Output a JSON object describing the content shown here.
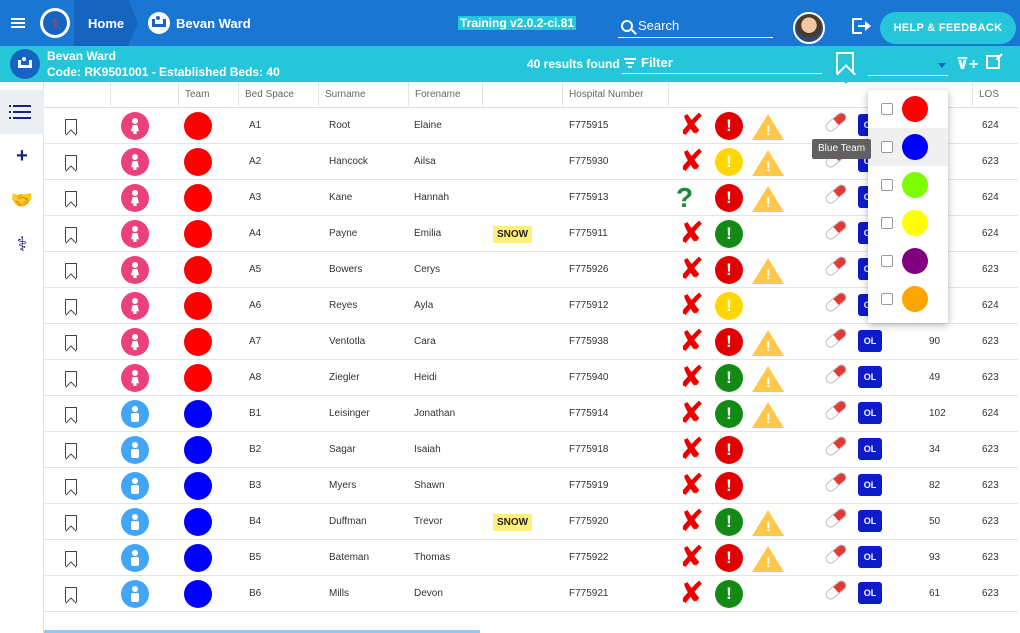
{
  "topbar": {
    "home_label": "Home",
    "ward_label": "Bevan Ward",
    "version": "Training v2.0.2-ci.81",
    "search_placeholder": "Search",
    "help_label": "HELP & FEEDBACK",
    "colors": {
      "primary": "#1976d2",
      "accent": "#26c6da"
    }
  },
  "subbar": {
    "ward_name": "Bevan Ward",
    "ward_code": "Code: RK9501001 - Established Beds: 40",
    "results": "40 results found",
    "filter_label": "Filter"
  },
  "sidebar": {
    "items": [
      {
        "name": "list-icon"
      },
      {
        "name": "plus-icon",
        "glyph": "+"
      },
      {
        "name": "handshake-icon",
        "glyph": "🤝"
      },
      {
        "name": "stethoscope-icon",
        "glyph": "⚕"
      }
    ]
  },
  "table": {
    "headers": {
      "team": "Team",
      "bed_space": "Bed Space",
      "surname": "Surname",
      "forename": "Forename",
      "hospital_number": "Hospital Number",
      "los": "LOS"
    },
    "rows": [
      {
        "gender": "f",
        "team_color": "#ff0000",
        "bed": "A1",
        "surname": "Root",
        "forename": "Elaine",
        "tag": "",
        "hosp": "F775915",
        "mark": "x",
        "alert": "red",
        "warn": true,
        "ol": true,
        "los_a": "",
        "los": "624"
      },
      {
        "gender": "f",
        "team_color": "#ff0000",
        "bed": "A2",
        "surname": "Hancock",
        "forename": "Ailsa",
        "tag": "",
        "hosp": "F775930",
        "mark": "x",
        "alert": "yellow",
        "warn": true,
        "ol": true,
        "los_a": "",
        "los": "623"
      },
      {
        "gender": "f",
        "team_color": "#ff0000",
        "bed": "A3",
        "surname": "Kane",
        "forename": "Hannah",
        "tag": "",
        "hosp": "F775913",
        "mark": "q",
        "alert": "red",
        "warn": true,
        "ol": true,
        "los_a": "",
        "los": "624"
      },
      {
        "gender": "f",
        "team_color": "#ff0000",
        "bed": "A4",
        "surname": "Payne",
        "forename": "Emilia",
        "tag": "SNOW",
        "hosp": "F775911",
        "mark": "x",
        "alert": "green",
        "warn": false,
        "ol": true,
        "los_a": "",
        "los": "624"
      },
      {
        "gender": "f",
        "team_color": "#ff0000",
        "bed": "A5",
        "surname": "Bowers",
        "forename": "Cerys",
        "tag": "",
        "hosp": "F775926",
        "mark": "x",
        "alert": "red",
        "warn": true,
        "ol": true,
        "los_a": "",
        "los": "623"
      },
      {
        "gender": "f",
        "team_color": "#ff0000",
        "bed": "A6",
        "surname": "Reyes",
        "forename": "Ayla",
        "tag": "",
        "hosp": "F775912",
        "mark": "x",
        "alert": "yellow",
        "warn": false,
        "ol": true,
        "los_a": "",
        "los": "624"
      },
      {
        "gender": "f",
        "team_color": "#ff0000",
        "bed": "A7",
        "surname": "Ventotla",
        "forename": "Cara",
        "tag": "",
        "hosp": "F775938",
        "mark": "x",
        "alert": "red",
        "warn": true,
        "ol": true,
        "los_a": "90",
        "los": "623"
      },
      {
        "gender": "f",
        "team_color": "#ff0000",
        "bed": "A8",
        "surname": "Ziegler",
        "forename": "Heidi",
        "tag": "",
        "hosp": "F775940",
        "mark": "x",
        "alert": "green",
        "warn": true,
        "ol": true,
        "los_a": "49",
        "los": "623"
      },
      {
        "gender": "m",
        "team_color": "#0000ff",
        "bed": "B1",
        "surname": "Leisinger",
        "forename": "Jonathan",
        "tag": "",
        "hosp": "F775914",
        "mark": "x",
        "alert": "green",
        "warn": true,
        "ol": true,
        "los_a": "102",
        "los": "624"
      },
      {
        "gender": "m",
        "team_color": "#0000ff",
        "bed": "B2",
        "surname": "Sagar",
        "forename": "Isaiah",
        "tag": "",
        "hosp": "F775918",
        "mark": "x",
        "alert": "red",
        "warn": false,
        "ol": true,
        "los_a": "34",
        "los": "623"
      },
      {
        "gender": "m",
        "team_color": "#0000ff",
        "bed": "B3",
        "surname": "Myers",
        "forename": "Shawn",
        "tag": "",
        "hosp": "F775919",
        "mark": "x",
        "alert": "red",
        "warn": false,
        "ol": true,
        "los_a": "82",
        "los": "623"
      },
      {
        "gender": "m",
        "team_color": "#0000ff",
        "bed": "B4",
        "surname": "Duffman",
        "forename": "Trevor",
        "tag": "SNOW",
        "hosp": "F775920",
        "mark": "x",
        "alert": "green",
        "warn": true,
        "ol": true,
        "los_a": "50",
        "los": "623"
      },
      {
        "gender": "m",
        "team_color": "#0000ff",
        "bed": "B5",
        "surname": "Bateman",
        "forename": "Thomas",
        "tag": "",
        "hosp": "F775922",
        "mark": "x",
        "alert": "red",
        "warn": true,
        "ol": true,
        "los_a": "93",
        "los": "623"
      },
      {
        "gender": "m",
        "team_color": "#0000ff",
        "bed": "B6",
        "surname": "Mills",
        "forename": "Devon",
        "tag": "",
        "hosp": "F775921",
        "mark": "x",
        "alert": "green",
        "warn": false,
        "ol": true,
        "los_a": "61",
        "los": "623"
      }
    ]
  },
  "dropdown": {
    "tooltip": "Blue Team",
    "options": [
      {
        "color": "#ff0000"
      },
      {
        "color": "#0000ff"
      },
      {
        "color": "#7cfc00"
      },
      {
        "color": "#ffff00"
      },
      {
        "color": "#800080"
      },
      {
        "color": "#ffa500"
      }
    ]
  },
  "alert_colors": {
    "red": "#e00000",
    "yellow": "#ffd600",
    "green": "#138a13"
  },
  "gender_colors": {
    "f": "#ec407a",
    "m": "#42a5f5"
  }
}
